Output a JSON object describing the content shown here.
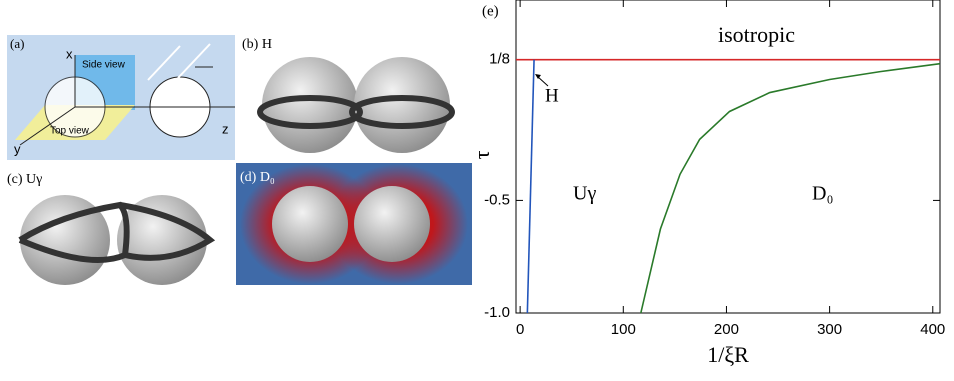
{
  "panels": {
    "a": {
      "label": "(a)",
      "axes": [
        "x",
        "y",
        "z"
      ],
      "side_view": "Side view",
      "top_view": "Top view"
    },
    "b": {
      "label": "(b) H"
    },
    "c": {
      "label": "(c) Uγ"
    },
    "d": {
      "label": "(d) D₀"
    }
  },
  "chart_data": {
    "type": "line",
    "panel_label": "(e)",
    "xlabel": "1/ξR",
    "ylabel": "τ",
    "xlim": [
      -4,
      407
    ],
    "ylim": [
      -1.0,
      0.39
    ],
    "xticks": [
      0,
      100,
      200,
      300,
      400
    ],
    "yticks": [
      {
        "value": -1,
        "label": "-1.0"
      },
      -0.5,
      {
        "value": 0.125,
        "label": "1/8"
      }
    ],
    "annotations": [
      "isotropic",
      "H",
      "Uγ",
      "D₀"
    ],
    "series": [
      {
        "color": "#d62728",
        "x": [
          -4,
          407
        ],
        "values": [
          0.125,
          0.125
        ]
      },
      {
        "color": "#2255bb",
        "x": [
          7,
          13.5
        ],
        "values": [
          -1,
          0.125
        ]
      },
      {
        "color": "#2a7a2a",
        "x": [
          117,
          136,
          155,
          174,
          203,
          242,
          300,
          349,
          407
        ],
        "values": [
          -1,
          -0.627,
          -0.384,
          -0.229,
          -0.105,
          -0.021,
          0.037,
          0.072,
          0.107
        ]
      }
    ]
  }
}
